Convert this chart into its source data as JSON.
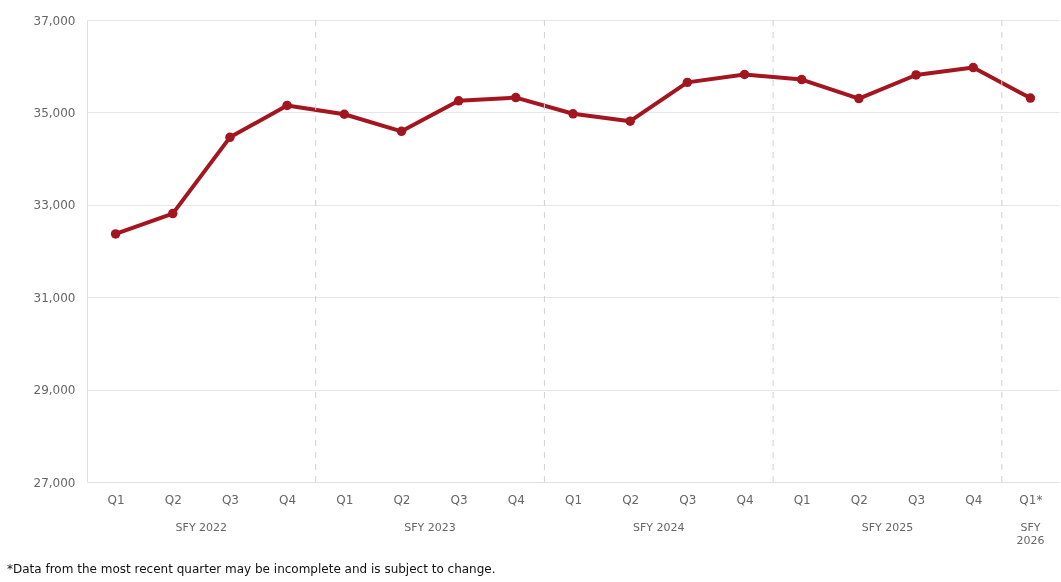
{
  "chart_data": {
    "type": "line",
    "categories": [
      "Q1",
      "Q2",
      "Q3",
      "Q4",
      "Q1",
      "Q2",
      "Q3",
      "Q4",
      "Q1",
      "Q2",
      "Q3",
      "Q4",
      "Q1",
      "Q2",
      "Q3",
      "Q4",
      "Q1*"
    ],
    "series": [
      {
        "color": "#a3161f",
        "values": [
          32370,
          32810,
          34460,
          35150,
          34960,
          34590,
          35250,
          35320,
          34970,
          34810,
          35650,
          35820,
          35710,
          35300,
          35810,
          35970,
          35310
        ]
      }
    ],
    "ylim": [
      27000,
      37000
    ],
    "yticks": [
      {
        "value": 27000,
        "label": "27,000"
      },
      {
        "value": 29000,
        "label": "29,000"
      },
      {
        "value": 31000,
        "label": "31,000"
      },
      {
        "value": 33000,
        "label": "33,000"
      },
      {
        "value": 35000,
        "label": "35,000"
      },
      {
        "value": 37000,
        "label": "37,000"
      }
    ],
    "grid": "y",
    "marker": "circle",
    "line_style": "solid",
    "annotations": [
      "SFY 2022",
      "SFY 2023",
      "SFY 2024",
      "SFY 2025",
      "SFY 2026",
      "*Data from the most recent quarter may be incomplete and is subject to change."
    ]
  }
}
